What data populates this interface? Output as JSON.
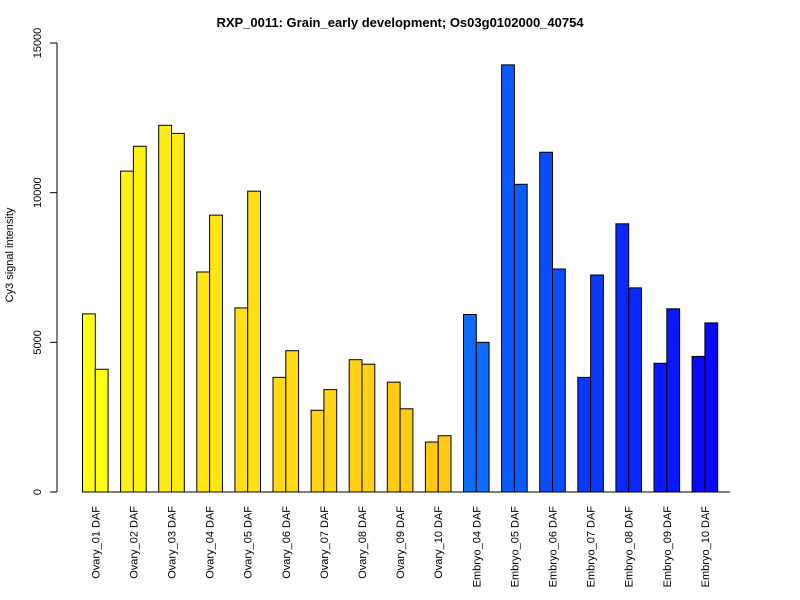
{
  "chart_data": {
    "type": "bar",
    "title": "RXP_0011: Grain_early development; Os03g0102000_40754",
    "xlabel": "",
    "ylabel": "Cy3 signal intensity",
    "ylim": [
      0,
      15000
    ],
    "yticks": [
      0,
      5000,
      10000,
      15000
    ],
    "categories": [
      "Ovary_01 DAF",
      "Ovary_02 DAF",
      "Ovary_03 DAF",
      "Ovary_04 DAF",
      "Ovary_05 DAF",
      "Ovary_06 DAF",
      "Ovary_07 DAF",
      "Ovary_08 DAF",
      "Ovary_09 DAF",
      "Ovary_10 DAF",
      "Embryo_04 DAF",
      "Embryo_05 DAF",
      "Embryo_06 DAF",
      "Embryo_07 DAF",
      "Embryo_08 DAF",
      "Embryo_09 DAF",
      "Embryo_10 DAF"
    ],
    "category_colors": [
      "#ffff14",
      "#fff214",
      "#ffeb14",
      "#ffe614",
      "#ffe014",
      "#ffda14",
      "#ffd414",
      "#ffd014",
      "#ffcc14",
      "#ffc814",
      "#0f6cff",
      "#0a5cff",
      "#0a4cff",
      "#0a38ff",
      "#0a28ff",
      "#0a18ff",
      "#0a08ff"
    ],
    "series": [
      {
        "values": [
          5950,
          10720,
          12250,
          7350,
          6150,
          3830,
          2730,
          4420,
          3670,
          1670,
          5930,
          14270,
          11350,
          3830,
          8960,
          4300,
          4530
        ]
      },
      {
        "values": [
          4100,
          11550,
          11980,
          9250,
          10050,
          4720,
          3420,
          4270,
          2780,
          1880,
          5000,
          10280,
          7450,
          7250,
          6820,
          6120,
          5650
        ]
      }
    ],
    "grid": false,
    "legend": "none"
  }
}
